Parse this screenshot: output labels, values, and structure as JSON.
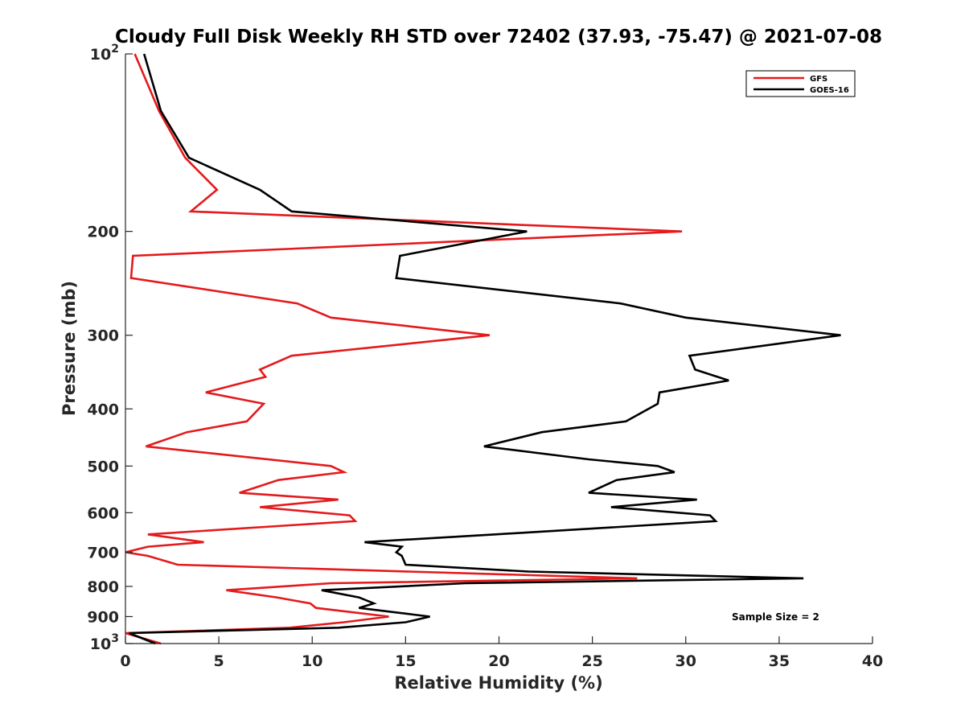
{
  "chart_data": {
    "type": "line",
    "title": "Cloudy Full Disk Weekly RH STD over 72402 (37.93, -75.47) @ 2021-07-08",
    "xlabel": "Relative Humidity (%)",
    "ylabel": "Pressure (mb)",
    "xlim": [
      0,
      40
    ],
    "ylim": [
      100,
      1000
    ],
    "y_scale": "log",
    "y_reversed": true,
    "x_ticks": [
      "0",
      "5",
      "10",
      "15",
      "20",
      "25",
      "30",
      "35",
      "40"
    ],
    "y_ticks": [
      {
        "value": 100,
        "base": "10",
        "exp": "2"
      },
      {
        "value": 200,
        "label": "200"
      },
      {
        "value": 300,
        "label": "300"
      },
      {
        "value": 400,
        "label": "400"
      },
      {
        "value": 500,
        "label": "500"
      },
      {
        "value": 600,
        "label": "600"
      },
      {
        "value": 700,
        "label": "700"
      },
      {
        "value": 800,
        "label": "800"
      },
      {
        "value": 900,
        "label": "900"
      },
      {
        "value": 1000,
        "base": "10",
        "exp": "3"
      }
    ],
    "legend_position": "top-right",
    "grid": false,
    "annotation": "Sample Size = 2",
    "series": [
      {
        "name": "GFS",
        "color": "#e41a1c",
        "points": [
          [
            0.5,
            100
          ],
          [
            1.8,
            125
          ],
          [
            3.2,
            150
          ],
          [
            4.9,
            170
          ],
          [
            3.5,
            185
          ],
          [
            29.8,
            200
          ],
          [
            0.4,
            220
          ],
          [
            0.3,
            240
          ],
          [
            9.2,
            265
          ],
          [
            11.0,
            280
          ],
          [
            19.5,
            300
          ],
          [
            8.9,
            325
          ],
          [
            7.2,
            343
          ],
          [
            7.5,
            353
          ],
          [
            4.3,
            375
          ],
          [
            7.4,
            392
          ],
          [
            6.5,
            420
          ],
          [
            3.3,
            438
          ],
          [
            1.1,
            463
          ],
          [
            11.0,
            500
          ],
          [
            11.7,
            512
          ],
          [
            8.2,
            528
          ],
          [
            6.1,
            555
          ],
          [
            11.4,
            570
          ],
          [
            7.2,
            587
          ],
          [
            12.0,
            606
          ],
          [
            12.3,
            620
          ],
          [
            1.2,
            653
          ],
          [
            4.2,
            673
          ],
          [
            1.2,
            685
          ],
          [
            0.0,
            700
          ],
          [
            1.2,
            710
          ],
          [
            2.8,
            735
          ],
          [
            27.4,
            775
          ],
          [
            11.0,
            790
          ],
          [
            5.4,
            812
          ],
          [
            8.1,
            835
          ],
          [
            9.9,
            855
          ],
          [
            10.2,
            870
          ],
          [
            14.1,
            900
          ],
          [
            11.7,
            920
          ],
          [
            8.8,
            940
          ],
          [
            0.0,
            960
          ],
          [
            1.9,
            1000
          ]
        ]
      },
      {
        "name": "GOES-16",
        "color": "#000000",
        "points": [
          [
            1.0,
            100
          ],
          [
            1.9,
            125
          ],
          [
            3.4,
            150
          ],
          [
            7.2,
            170
          ],
          [
            8.9,
            185
          ],
          [
            21.5,
            200
          ],
          [
            14.7,
            220
          ],
          [
            14.5,
            240
          ],
          [
            26.5,
            265
          ],
          [
            30.0,
            280
          ],
          [
            38.3,
            300
          ],
          [
            30.2,
            325
          ],
          [
            30.5,
            343
          ],
          [
            32.3,
            358
          ],
          [
            28.6,
            375
          ],
          [
            28.5,
            392
          ],
          [
            26.8,
            420
          ],
          [
            22.3,
            438
          ],
          [
            19.2,
            463
          ],
          [
            24.8,
            487
          ],
          [
            28.5,
            500
          ],
          [
            29.4,
            512
          ],
          [
            26.3,
            528
          ],
          [
            24.8,
            555
          ],
          [
            30.6,
            570
          ],
          [
            26.0,
            587
          ],
          [
            31.3,
            606
          ],
          [
            31.6,
            620
          ],
          [
            19.8,
            653
          ],
          [
            12.8,
            673
          ],
          [
            14.8,
            685
          ],
          [
            14.5,
            700
          ],
          [
            14.8,
            710
          ],
          [
            15.0,
            735
          ],
          [
            21.6,
            755
          ],
          [
            36.3,
            775
          ],
          [
            18.2,
            790
          ],
          [
            10.5,
            812
          ],
          [
            12.5,
            835
          ],
          [
            13.3,
            855
          ],
          [
            12.5,
            870
          ],
          [
            16.3,
            900
          ],
          [
            15.0,
            920
          ],
          [
            11.4,
            940
          ],
          [
            0.2,
            960
          ],
          [
            1.6,
            1000
          ]
        ]
      }
    ]
  }
}
